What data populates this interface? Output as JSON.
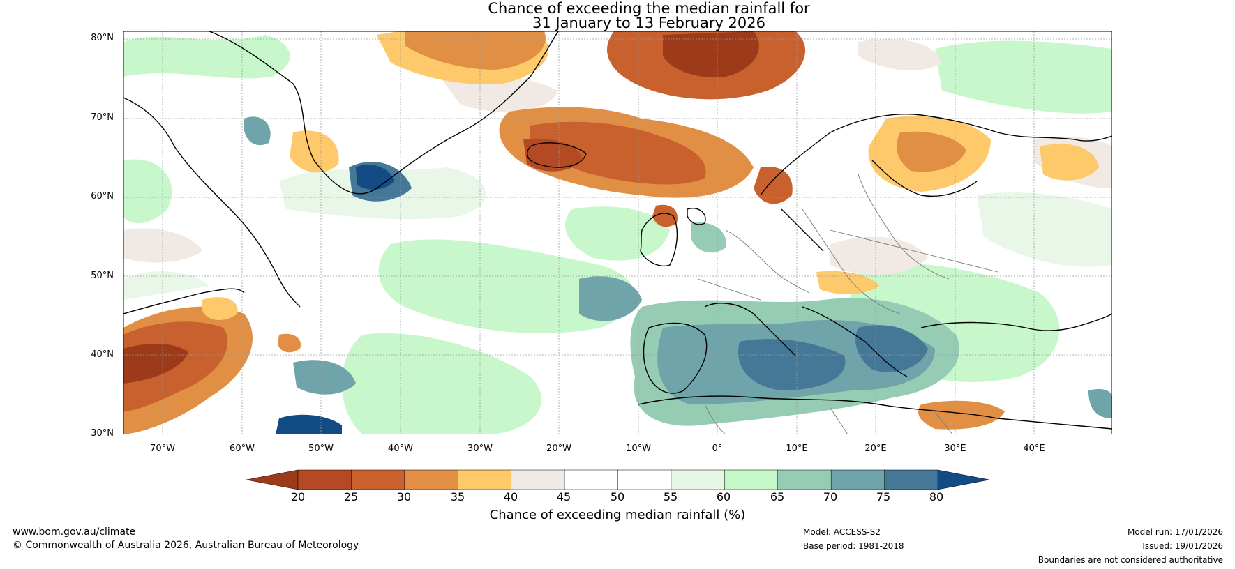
{
  "title": {
    "line1": "Chance of exceeding the median rainfall for",
    "line2": "31 January to 13 February 2026"
  },
  "map": {
    "lat_labels": [
      "80°N",
      "70°N",
      "60°N",
      "50°N",
      "40°N",
      "30°N"
    ],
    "lon_labels": [
      "70°W",
      "60°W",
      "50°W",
      "40°W",
      "30°W",
      "20°W",
      "10°W",
      "0°",
      "10°E",
      "20°E",
      "30°E",
      "40°E"
    ],
    "lat_range": [
      30,
      81
    ],
    "lon_range": [
      -75,
      50
    ]
  },
  "colorbar": {
    "ticks": [
      "20",
      "25",
      "30",
      "35",
      "40",
      "45",
      "50",
      "55",
      "60",
      "65",
      "70",
      "75",
      "80"
    ],
    "colors": [
      "#9c3a1a",
      "#b34a24",
      "#c9612e",
      "#e08f45",
      "#fdc96a",
      "#f1eae4",
      "#ffffff",
      "#ffffff",
      "#e7f7e6",
      "#c5f7c9",
      "#95ccb3",
      "#6fa4aa",
      "#457896",
      "#134b84"
    ],
    "label": "Chance of exceeding median rainfall (%)"
  },
  "footer": {
    "website": "www.bom.gov.au/climate",
    "copyright": "© Commonwealth of Australia 2026, Australian Bureau of Meteorology",
    "model": "Model: ACCESS-S2",
    "base_period": "Base period: 1981-2018",
    "model_run": "Model run: 17/01/2026",
    "issued": "Issued: 19/01/2026",
    "disclaimer": "Boundaries are not considered authoritative"
  }
}
